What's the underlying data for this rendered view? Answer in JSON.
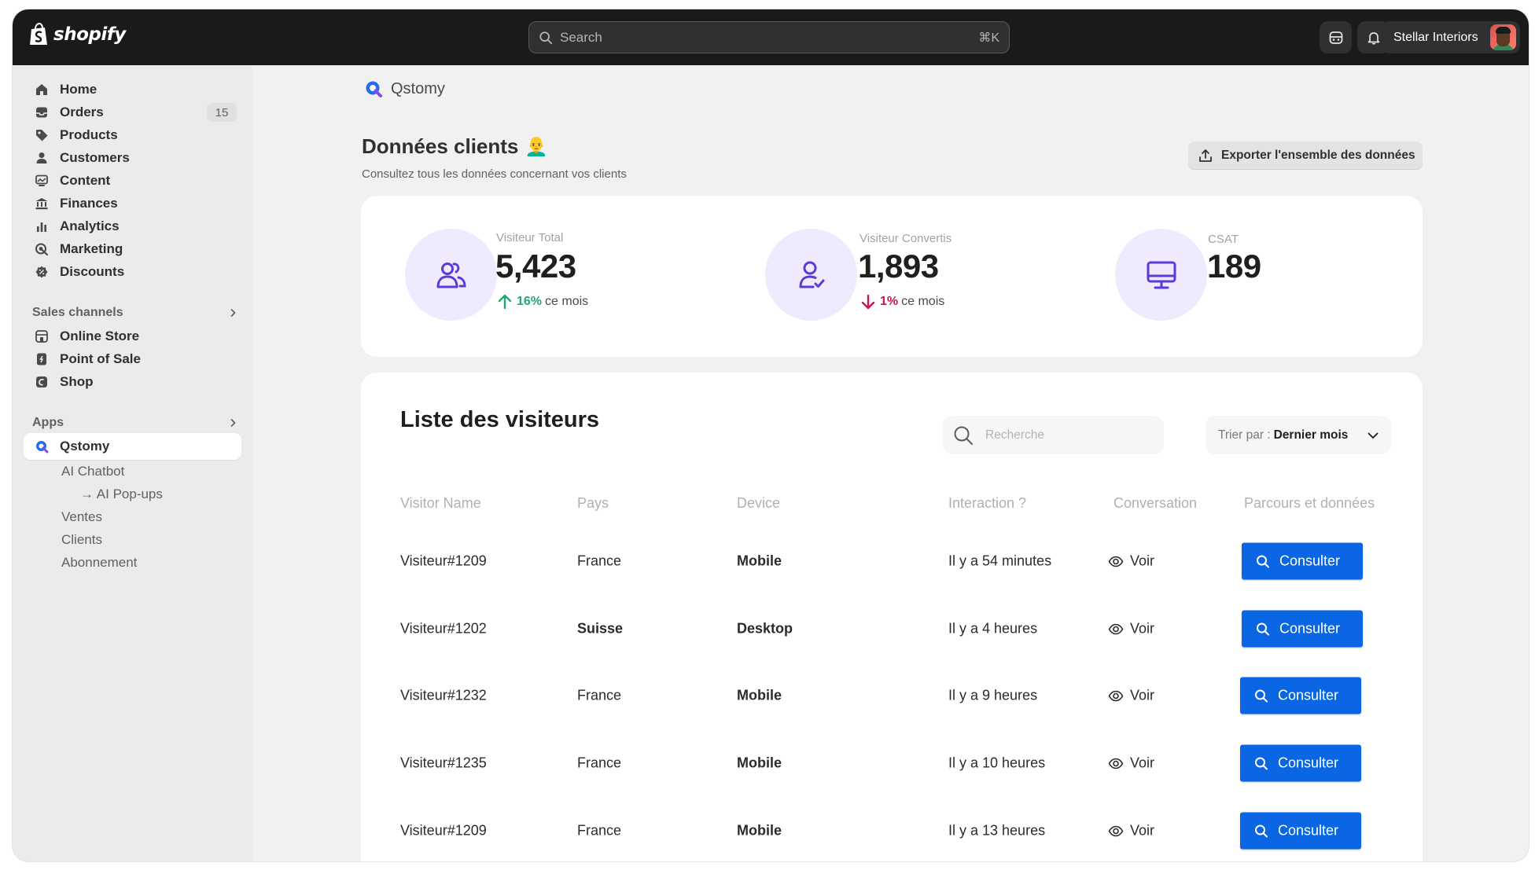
{
  "topbar": {
    "brand": "shopify",
    "search_placeholder": "Search",
    "search_shortcut": "⌘K",
    "store_name": "Stellar Interiors"
  },
  "sidebar": {
    "items": [
      {
        "label": "Home",
        "icon": "home-icon"
      },
      {
        "label": "Orders",
        "icon": "inbox-icon",
        "badge": "15"
      },
      {
        "label": "Products",
        "icon": "tag-icon"
      },
      {
        "label": "Customers",
        "icon": "person-icon"
      },
      {
        "label": "Content",
        "icon": "image-icon"
      },
      {
        "label": "Finances",
        "icon": "bank-icon"
      },
      {
        "label": "Analytics",
        "icon": "bar-chart-icon"
      },
      {
        "label": "Marketing",
        "icon": "target-icon"
      },
      {
        "label": "Discounts",
        "icon": "discount-icon"
      }
    ],
    "sales_channels": {
      "heading": "Sales channels",
      "items": [
        {
          "label": "Online Store",
          "icon": "store-icon"
        },
        {
          "label": "Point of Sale",
          "icon": "pos-icon"
        },
        {
          "label": "Shop",
          "icon": "shop-icon"
        }
      ]
    },
    "apps": {
      "heading": "Apps",
      "active_app": "Qstomy",
      "sub_items": [
        "AI Chatbot",
        "→ AI Pop-ups",
        "Ventes",
        "Clients",
        "Abonnement"
      ]
    }
  },
  "main": {
    "app_name": "Qstomy",
    "title": "Données clients",
    "title_emoji": "👨‍🦲",
    "subtitle": "Consultez tous les données concernant vos clients",
    "export_label": "Exporter l'ensemble des données",
    "stats": [
      {
        "label": "Visiteur Total",
        "value": "5,423",
        "trend_value": "16%",
        "trend_text": "ce mois",
        "trend": "up"
      },
      {
        "label": "Visiteur Convertis",
        "value": "1,893",
        "trend_value": "1%",
        "trend_text": "ce mois",
        "trend": "down"
      },
      {
        "label": "CSAT",
        "value": "189"
      }
    ],
    "visitors": {
      "title": "Liste des visiteurs",
      "search_placeholder": "Recherche",
      "sort_prefix": "Trier par :",
      "sort_value": "Dernier mois",
      "columns": [
        "Visitor Name",
        "Pays",
        "Device",
        "Interaction ?",
        "Conversation",
        "Parcours et données"
      ],
      "rows": [
        {
          "name": "Visiteur#1209",
          "country": "France",
          "device": "Mobile",
          "interaction": "Il y a 54 minutes",
          "conversation": "Voir",
          "action": "Consulter"
        },
        {
          "name": "Visiteur#1202",
          "country": "Suisse",
          "device": "Desktop",
          "interaction": "Il y a 4 heures",
          "conversation": "Voir",
          "action": "Consulter"
        },
        {
          "name": "Visiteur#1232",
          "country": "France",
          "device": "Mobile",
          "interaction": "Il y a 9 heures",
          "conversation": "Voir",
          "action": "Consulter"
        },
        {
          "name": "Visiteur#1235",
          "country": "France",
          "device": "Mobile",
          "interaction": "Il y a 10 heures",
          "conversation": "Voir",
          "action": "Consulter"
        },
        {
          "name": "Visiteur#1209",
          "country": "France",
          "device": "Mobile",
          "interaction": "Il y a 13 heures",
          "conversation": "Voir",
          "action": "Consulter"
        }
      ]
    }
  },
  "colors": {
    "topbar": "#1a1a1a",
    "accent_purple": "#5b3bd6",
    "stat_circle": "#efeafd",
    "button_blue": "#0b66e4",
    "trend_up": "#1fa971",
    "trend_down": "#c9164f"
  }
}
